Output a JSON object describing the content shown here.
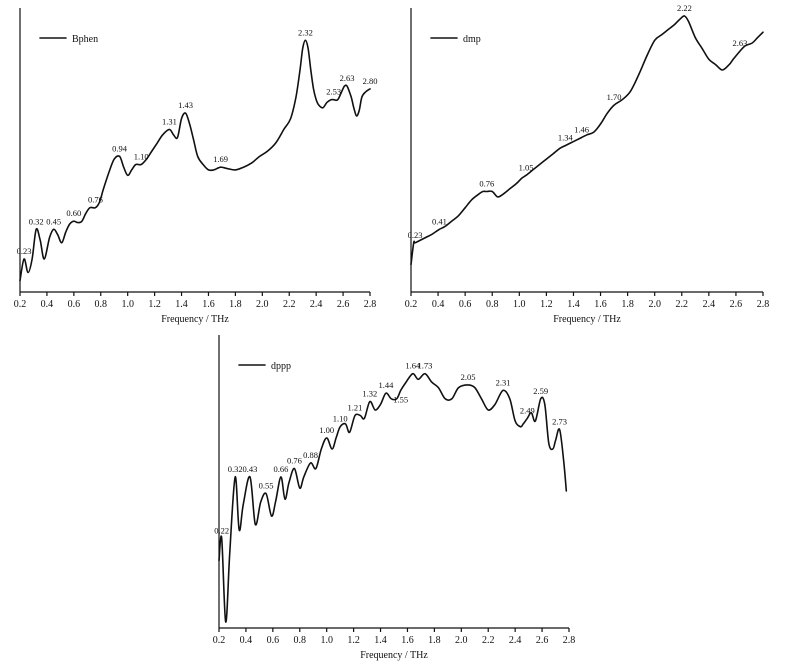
{
  "chart_data": [
    {
      "type": "line",
      "xlabel": "Frequency / THz",
      "ylabel": "",
      "xlim": [
        0.2,
        2.8
      ],
      "xticks": [
        "0.2",
        "0.4",
        "0.6",
        "0.8",
        "1.0",
        "1.2",
        "1.4",
        "1.6",
        "1.8",
        "2.0",
        "2.2",
        "2.4",
        "2.6",
        "2.8"
      ],
      "legend": "top-left",
      "series": [
        {
          "name": "Bphen",
          "x": [
            0.2,
            0.23,
            0.26,
            0.29,
            0.32,
            0.35,
            0.38,
            0.42,
            0.45,
            0.48,
            0.51,
            0.54,
            0.57,
            0.6,
            0.63,
            0.66,
            0.69,
            0.72,
            0.76,
            0.79,
            0.82,
            0.86,
            0.9,
            0.94,
            0.97,
            1.0,
            1.03,
            1.06,
            1.1,
            1.14,
            1.18,
            1.22,
            1.26,
            1.31,
            1.34,
            1.37,
            1.4,
            1.43,
            1.46,
            1.49,
            1.52,
            1.56,
            1.6,
            1.64,
            1.69,
            1.74,
            1.8,
            1.86,
            1.92,
            1.98,
            2.04,
            2.1,
            2.16,
            2.21,
            2.25,
            2.28,
            2.3,
            2.32,
            2.34,
            2.36,
            2.38,
            2.4,
            2.42,
            2.45,
            2.48,
            2.51,
            2.53,
            2.56,
            2.59,
            2.61,
            2.63,
            2.66,
            2.68,
            2.7,
            2.72,
            2.74,
            2.77,
            2.8
          ],
          "y": [
            0.02,
            0.1,
            0.05,
            0.1,
            0.21,
            0.17,
            0.1,
            0.18,
            0.21,
            0.19,
            0.16,
            0.2,
            0.23,
            0.24,
            0.235,
            0.24,
            0.27,
            0.29,
            0.29,
            0.31,
            0.36,
            0.42,
            0.47,
            0.48,
            0.44,
            0.41,
            0.43,
            0.45,
            0.45,
            0.47,
            0.5,
            0.53,
            0.56,
            0.58,
            0.56,
            0.55,
            0.62,
            0.64,
            0.6,
            0.54,
            0.48,
            0.45,
            0.43,
            0.43,
            0.44,
            0.435,
            0.43,
            0.44,
            0.455,
            0.48,
            0.5,
            0.53,
            0.58,
            0.62,
            0.7,
            0.8,
            0.88,
            0.91,
            0.88,
            0.8,
            0.73,
            0.69,
            0.67,
            0.66,
            0.68,
            0.69,
            0.69,
            0.69,
            0.72,
            0.74,
            0.74,
            0.7,
            0.66,
            0.63,
            0.65,
            0.7,
            0.72,
            0.73
          ]
        }
      ],
      "annotations": [
        {
          "text": "0.23",
          "x": 0.23,
          "y": 0.1
        },
        {
          "text": "0.32",
          "x": 0.32,
          "y": 0.21
        },
        {
          "text": "0.45",
          "x": 0.45,
          "y": 0.21
        },
        {
          "text": "0.60",
          "x": 0.6,
          "y": 0.24
        },
        {
          "text": "0.76",
          "x": 0.76,
          "y": 0.29
        },
        {
          "text": "0.94",
          "x": 0.94,
          "y": 0.48
        },
        {
          "text": "1.10",
          "x": 1.1,
          "y": 0.45
        },
        {
          "text": "1.31",
          "x": 1.31,
          "y": 0.58
        },
        {
          "text": "1.43",
          "x": 1.43,
          "y": 0.64
        },
        {
          "text": "1.69",
          "x": 1.69,
          "y": 0.44
        },
        {
          "text": "2.32",
          "x": 2.32,
          "y": 0.91
        },
        {
          "text": "2.53",
          "x": 2.53,
          "y": 0.69
        },
        {
          "text": "2.63",
          "x": 2.63,
          "y": 0.74
        },
        {
          "text": "2.80",
          "x": 2.8,
          "y": 0.73
        }
      ]
    },
    {
      "type": "line",
      "xlabel": "Frequency / THz",
      "ylabel": "",
      "xlim": [
        0.2,
        2.8
      ],
      "xticks": [
        "0.2",
        "0.4",
        "0.6",
        "0.8",
        "1.0",
        "1.2",
        "1.4",
        "1.6",
        "1.8",
        "2.0",
        "2.2",
        "2.4",
        "2.6",
        "2.8"
      ],
      "legend": "top-left",
      "series": [
        {
          "name": "dmp",
          "x": [
            0.2,
            0.22,
            0.23,
            0.27,
            0.31,
            0.35,
            0.38,
            0.41,
            0.45,
            0.5,
            0.55,
            0.6,
            0.65,
            0.7,
            0.73,
            0.76,
            0.8,
            0.84,
            0.88,
            0.93,
            0.98,
            1.02,
            1.05,
            1.1,
            1.15,
            1.2,
            1.25,
            1.3,
            1.34,
            1.38,
            1.42,
            1.46,
            1.5,
            1.55,
            1.6,
            1.65,
            1.7,
            1.76,
            1.82,
            1.88,
            1.94,
            2.0,
            2.05,
            2.1,
            2.15,
            2.19,
            2.22,
            2.25,
            2.3,
            2.35,
            2.4,
            2.45,
            2.5,
            2.55,
            2.58,
            2.63,
            2.67,
            2.72,
            2.76,
            2.8
          ],
          "y": [
            0.08,
            0.16,
            0.16,
            0.17,
            0.18,
            0.19,
            0.2,
            0.21,
            0.22,
            0.24,
            0.26,
            0.29,
            0.32,
            0.34,
            0.35,
            0.35,
            0.35,
            0.33,
            0.34,
            0.36,
            0.38,
            0.4,
            0.41,
            0.43,
            0.45,
            0.47,
            0.49,
            0.51,
            0.52,
            0.53,
            0.54,
            0.55,
            0.56,
            0.57,
            0.6,
            0.64,
            0.67,
            0.69,
            0.72,
            0.78,
            0.85,
            0.91,
            0.93,
            0.95,
            0.97,
            0.99,
            1.0,
            0.98,
            0.92,
            0.88,
            0.84,
            0.82,
            0.8,
            0.82,
            0.84,
            0.87,
            0.89,
            0.9,
            0.92,
            0.94
          ]
        }
      ],
      "annotations": [
        {
          "text": "0.23",
          "x": 0.23,
          "y": 0.16
        },
        {
          "text": "0.41",
          "x": 0.41,
          "y": 0.21
        },
        {
          "text": "0.76",
          "x": 0.76,
          "y": 0.35
        },
        {
          "text": "1.05",
          "x": 1.05,
          "y": 0.41
        },
        {
          "text": "1.34",
          "x": 1.34,
          "y": 0.52
        },
        {
          "text": "1.46",
          "x": 1.46,
          "y": 0.55
        },
        {
          "text": "1.70",
          "x": 1.7,
          "y": 0.67
        },
        {
          "text": "2.22",
          "x": 2.22,
          "y": 1.0
        },
        {
          "text": "2.63",
          "x": 2.63,
          "y": 0.87
        }
      ]
    },
    {
      "type": "line",
      "xlabel": "Frequency / THz",
      "ylabel": "",
      "xlim": [
        0.2,
        2.8
      ],
      "xticks": [
        "0.2",
        "0.4",
        "0.6",
        "0.8",
        "1.0",
        "1.2",
        "1.4",
        "1.6",
        "1.8",
        "2.0",
        "2.2",
        "2.4",
        "2.6",
        "2.8"
      ],
      "legend": "top-left",
      "series": [
        {
          "name": "dppp",
          "x": [
            0.2,
            0.22,
            0.25,
            0.28,
            0.32,
            0.35,
            0.38,
            0.43,
            0.47,
            0.51,
            0.55,
            0.59,
            0.62,
            0.66,
            0.69,
            0.72,
            0.76,
            0.8,
            0.83,
            0.88,
            0.92,
            0.96,
            1.0,
            1.04,
            1.07,
            1.1,
            1.14,
            1.17,
            1.21,
            1.25,
            1.28,
            1.32,
            1.36,
            1.4,
            1.44,
            1.48,
            1.52,
            1.55,
            1.59,
            1.64,
            1.68,
            1.73,
            1.78,
            1.83,
            1.88,
            1.93,
            1.98,
            2.05,
            2.1,
            2.15,
            2.2,
            2.25,
            2.31,
            2.36,
            2.4,
            2.44,
            2.46,
            2.49,
            2.52,
            2.55,
            2.59,
            2.62,
            2.65,
            2.68,
            2.7,
            2.73,
            2.76,
            2.78
          ],
          "y": [
            0.22,
            0.3,
            0.0,
            0.25,
            0.52,
            0.33,
            0.42,
            0.52,
            0.35,
            0.43,
            0.46,
            0.38,
            0.43,
            0.52,
            0.44,
            0.5,
            0.55,
            0.48,
            0.52,
            0.57,
            0.55,
            0.62,
            0.66,
            0.62,
            0.66,
            0.7,
            0.71,
            0.68,
            0.74,
            0.74,
            0.73,
            0.79,
            0.76,
            0.78,
            0.82,
            0.8,
            0.8,
            0.83,
            0.86,
            0.89,
            0.87,
            0.89,
            0.86,
            0.84,
            0.8,
            0.8,
            0.84,
            0.85,
            0.84,
            0.8,
            0.76,
            0.78,
            0.83,
            0.8,
            0.72,
            0.7,
            0.71,
            0.73,
            0.75,
            0.72,
            0.8,
            0.78,
            0.64,
            0.62,
            0.65,
            0.69,
            0.58,
            0.47
          ]
        }
      ],
      "annotations": [
        {
          "text": "0.22",
          "x": 0.22,
          "y": 0.3
        },
        {
          "text": "0.32",
          "x": 0.32,
          "y": 0.52
        },
        {
          "text": "0.43",
          "x": 0.43,
          "y": 0.52
        },
        {
          "text": "0.55",
          "x": 0.55,
          "y": 0.46
        },
        {
          "text": "0.66",
          "x": 0.66,
          "y": 0.52
        },
        {
          "text": "0.76",
          "x": 0.76,
          "y": 0.55
        },
        {
          "text": "0.88",
          "x": 0.88,
          "y": 0.57
        },
        {
          "text": "1.00",
          "x": 1.0,
          "y": 0.66
        },
        {
          "text": "1.10",
          "x": 1.1,
          "y": 0.7
        },
        {
          "text": "1.21",
          "x": 1.21,
          "y": 0.74
        },
        {
          "text": "1.32",
          "x": 1.32,
          "y": 0.79
        },
        {
          "text": "1.44",
          "x": 1.44,
          "y": 0.82
        },
        {
          "text": "1.55",
          "x": 1.55,
          "y": 0.83,
          "below": true
        },
        {
          "text": "1.64",
          "x": 1.64,
          "y": 0.89
        },
        {
          "text": "1.73",
          "x": 1.73,
          "y": 0.89
        },
        {
          "text": "2.05",
          "x": 2.05,
          "y": 0.85
        },
        {
          "text": "2.31",
          "x": 2.31,
          "y": 0.83
        },
        {
          "text": "2.49",
          "x": 2.49,
          "y": 0.73
        },
        {
          "text": "2.59",
          "x": 2.59,
          "y": 0.8
        },
        {
          "text": "2.73",
          "x": 2.73,
          "y": 0.69
        }
      ]
    }
  ]
}
